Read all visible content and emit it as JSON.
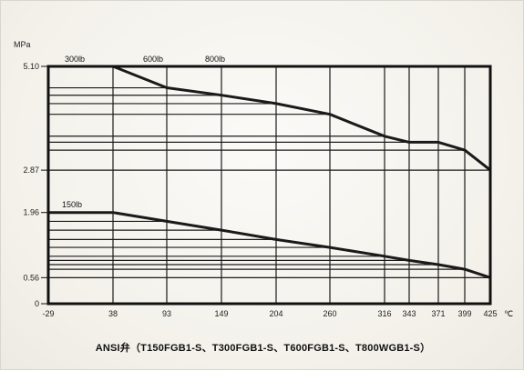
{
  "chart_data": {
    "type": "line",
    "y_unit": "MPa",
    "x_unit": "℃",
    "caption": "ANSI弁（T150FGB1-S、T300FGB1-S、T600FGB1-S、T800WGB1-S）",
    "x_ticks": [
      -29,
      38,
      93,
      149,
      204,
      260,
      316,
      343,
      371,
      399,
      425
    ],
    "x_tick_labels": [
      "-29",
      "38",
      "93",
      "149",
      "204",
      "260",
      "316",
      "343",
      "371",
      "399",
      "425"
    ],
    "y_ticks": [
      0,
      0.56,
      1.96,
      2.87,
      5.1
    ],
    "y_tick_labels": [
      "0",
      "0.56",
      "1.96",
      "2.87",
      "5.10"
    ],
    "xlim": [
      -29,
      425
    ],
    "ylim": [
      0,
      5.1
    ],
    "series": [
      {
        "name": "150lb",
        "x": [
          -29,
          38,
          93,
          149,
          204,
          260,
          316,
          343,
          371,
          399,
          425
        ],
        "y": [
          1.96,
          1.96,
          1.77,
          1.58,
          1.38,
          1.21,
          1.02,
          0.93,
          0.84,
          0.74,
          0.56
        ]
      },
      {
        "name": "300lb",
        "x": [
          -29,
          38,
          93,
          149,
          204,
          260,
          316,
          343,
          371,
          399,
          425
        ],
        "y": [
          5.1,
          5.1,
          4.64,
          4.48,
          4.3,
          4.07,
          3.6,
          3.47,
          3.47,
          3.3,
          2.87
        ]
      }
    ],
    "reference_labels": [
      "600lb",
      "800lb"
    ],
    "grid": "horizontal rungs at each series point, vertical lines at x ticks",
    "colors": {
      "line": "#1a1a1a",
      "frame": "#111111",
      "background": "#f5f3ee"
    }
  }
}
